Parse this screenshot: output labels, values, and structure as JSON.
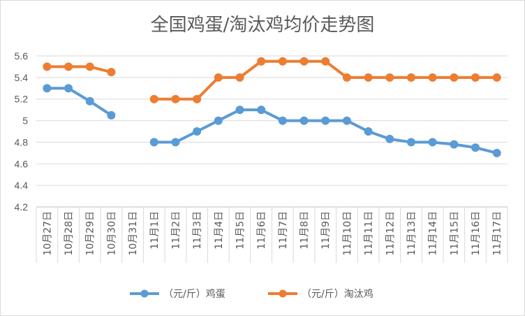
{
  "chart_data": {
    "type": "line",
    "title": "全国鸡蛋/淘汰鸡均价走势图",
    "xlabel": "",
    "ylabel": "",
    "categories": [
      "10月27日",
      "10月28日",
      "10月29日",
      "10月30日",
      "10月31日",
      "11月1日",
      "11月2日",
      "11月3日",
      "11月4日",
      "11月5日",
      "11月6日",
      "11月7日",
      "11月8日",
      "11月9日",
      "11月10日",
      "11月11日",
      "11月12日",
      "11月13日",
      "11月14日",
      "11月15日",
      "11月16日",
      "11月17日"
    ],
    "ylim": [
      4.2,
      5.6
    ],
    "yticks": [
      "4.2",
      "4.4",
      "4.6",
      "4.8",
      "5",
      "5.2",
      "5.4",
      "5.6"
    ],
    "grid": true,
    "legend_position": "bottom",
    "series": [
      {
        "name": "（元/斤）鸡蛋",
        "color": "#5b9bd5",
        "values": [
          5.3,
          5.3,
          5.18,
          5.05,
          null,
          4.8,
          4.8,
          4.9,
          5.0,
          5.1,
          5.1,
          5.0,
          5.0,
          5.0,
          5.0,
          4.9,
          4.83,
          4.8,
          4.8,
          4.78,
          4.75,
          4.7
        ]
      },
      {
        "name": "（元/斤）淘汰鸡",
        "color": "#ed7d31",
        "values": [
          5.5,
          5.5,
          5.5,
          5.45,
          null,
          5.2,
          5.2,
          5.2,
          5.4,
          5.4,
          5.55,
          5.55,
          5.55,
          5.55,
          5.4,
          5.4,
          5.4,
          5.4,
          5.4,
          5.4,
          5.4,
          5.4
        ]
      }
    ]
  }
}
